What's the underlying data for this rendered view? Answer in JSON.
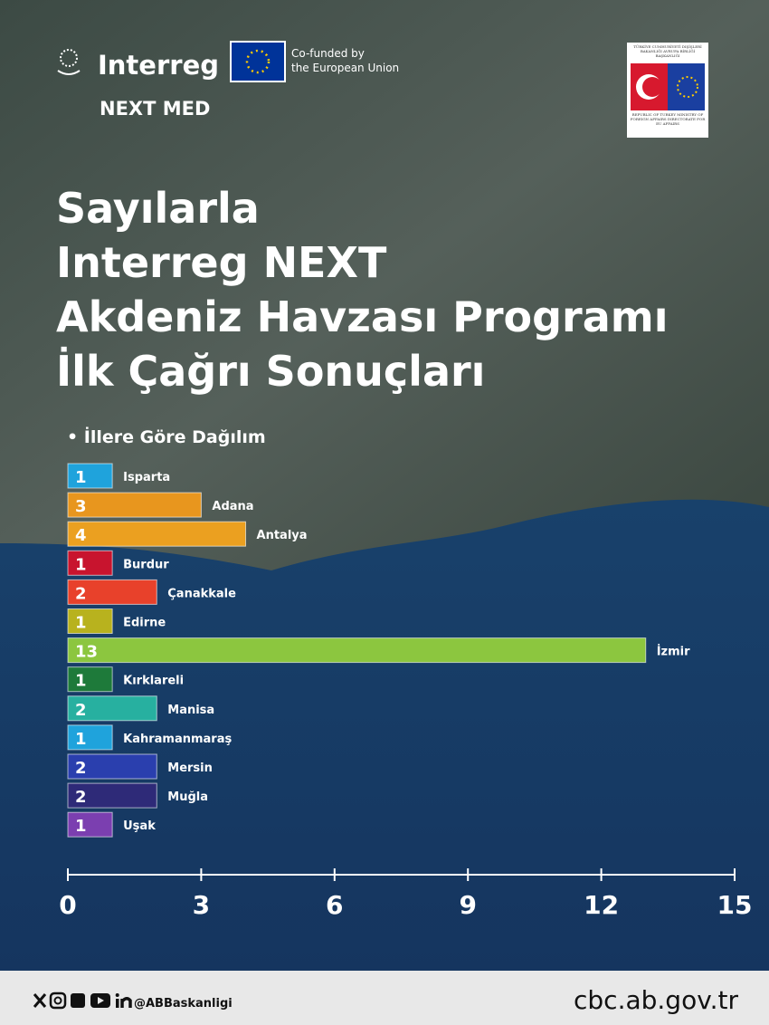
{
  "header": {
    "brand": "Interreg",
    "program": "NEXT MED",
    "cofund_line1": "Co-funded by",
    "cofund_line2": "the European Union",
    "ministry_tr": "TÜRKİYE CUMHURİYETİ DIŞİŞLERİ BAKANLIĞI AVRUPA BİRLİĞİ BAŞKANLIĞI",
    "ministry_en": "REPUBLIC OF TURKEY MINISTRY OF FOREIGN AFFAIRS DIRECTORATE FOR EU AFFAIRS"
  },
  "chart_data": {
    "type": "bar",
    "orientation": "horizontal",
    "title": [
      "Sayılarla",
      "Interreg NEXT",
      "Akdeniz Havzası Programı",
      "İlk Çağrı Sonuçları"
    ],
    "subtitle": "• İllere Göre Dağılım",
    "categories": [
      "Isparta",
      "Adana",
      "Antalya",
      "Burdur",
      "Çanakkale",
      "Edirne",
      "İzmir",
      "Kırklareli",
      "Manisa",
      "Kahramanmaraş",
      "Mersin",
      "Muğla",
      "Uşak"
    ],
    "values": [
      1,
      3,
      4,
      1,
      2,
      1,
      13,
      1,
      2,
      1,
      2,
      2,
      1
    ],
    "colors": [
      "#1fa3dc",
      "#e8961e",
      "#eba020",
      "#c8142e",
      "#e8412b",
      "#b8b21e",
      "#8cc63f",
      "#1e7a3a",
      "#27b0a0",
      "#1fa3dc",
      "#2a3fae",
      "#2e2a78",
      "#7b3fb0"
    ],
    "xlim": [
      0,
      15
    ],
    "xticks": [
      0,
      3,
      6,
      9,
      12,
      15
    ]
  },
  "footer": {
    "handle": "@ABBaskanligi",
    "website": "cbc.ab.gov.tr"
  }
}
